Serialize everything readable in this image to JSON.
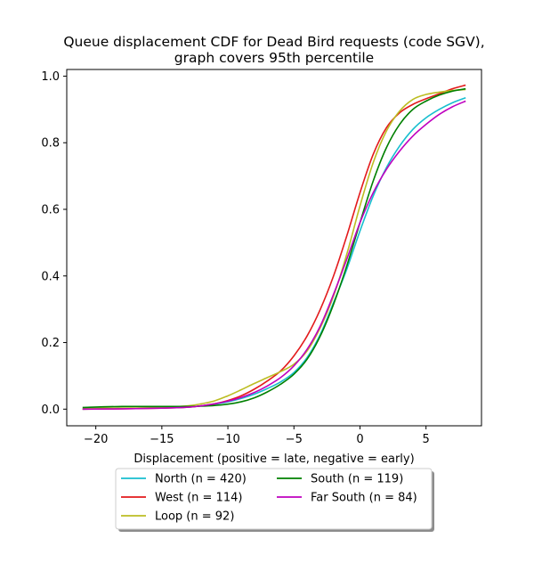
{
  "chart_data": {
    "type": "line",
    "title_lines": [
      "Queue displacement CDF for Dead Bird  requests (code SGV),",
      "graph covers 95th percentile"
    ],
    "xlabel": "Displacement (positive = late, negative = early)",
    "ylabel": "",
    "xlim": [
      -22.2,
      9.2
    ],
    "ylim": [
      -0.05,
      1.02
    ],
    "x_ticks": [
      -20,
      -15,
      -10,
      -5,
      0,
      5
    ],
    "x_tick_labels": [
      "−20",
      "−15",
      "−10",
      "−5",
      "0",
      "5"
    ],
    "y_ticks": [
      0.0,
      0.2,
      0.4,
      0.6,
      0.8,
      1.0
    ],
    "y_tick_labels": [
      "0.0",
      "0.2",
      "0.4",
      "0.6",
      "0.8",
      "1.0"
    ],
    "grid": false,
    "legend_position": "below plot, two columns",
    "series": [
      {
        "name": "North (n = 420)",
        "color": "#17becf",
        "x": [
          -21,
          -18,
          -15,
          -13,
          -12,
          -11,
          -10,
          -9,
          -8,
          -7,
          -6,
          -5,
          -4,
          -3,
          -2,
          -1,
          0,
          1,
          2,
          3,
          4,
          5,
          6,
          7,
          8
        ],
        "y": [
          0.0,
          0.002,
          0.004,
          0.006,
          0.01,
          0.015,
          0.022,
          0.032,
          0.045,
          0.062,
          0.082,
          0.11,
          0.155,
          0.225,
          0.32,
          0.42,
          0.535,
          0.64,
          0.725,
          0.79,
          0.84,
          0.875,
          0.9,
          0.92,
          0.935
        ]
      },
      {
        "name": "West (n = 114)",
        "color": "#e31a1c",
        "x": [
          -21,
          -18,
          -15,
          -13,
          -12,
          -11,
          -10,
          -9,
          -8,
          -7,
          -6,
          -5,
          -4,
          -3,
          -2,
          -1,
          0,
          1,
          2,
          3,
          4,
          5,
          6,
          7,
          8
        ],
        "y": [
          0.0,
          0.001,
          0.003,
          0.006,
          0.01,
          0.016,
          0.026,
          0.04,
          0.06,
          0.085,
          0.115,
          0.16,
          0.22,
          0.3,
          0.4,
          0.52,
          0.65,
          0.765,
          0.845,
          0.89,
          0.915,
          0.932,
          0.947,
          0.962,
          0.973
        ]
      },
      {
        "name": "Loop (n = 92)",
        "color": "#bcbd22",
        "x": [
          -21,
          -18,
          -15,
          -13,
          -12,
          -11,
          -10,
          -9,
          -8,
          -7,
          -6,
          -5,
          -4,
          -3,
          -2,
          -1,
          0,
          1,
          2,
          3,
          4,
          5,
          6,
          7,
          8
        ],
        "y": [
          0.002,
          0.003,
          0.005,
          0.01,
          0.016,
          0.025,
          0.04,
          0.058,
          0.077,
          0.095,
          0.113,
          0.135,
          0.175,
          0.245,
          0.34,
          0.465,
          0.61,
          0.74,
          0.835,
          0.895,
          0.93,
          0.945,
          0.952,
          0.957,
          0.96
        ]
      },
      {
        "name": "South (n = 119)",
        "color": "#008000",
        "x": [
          -21,
          -18,
          -15,
          -13,
          -12,
          -11,
          -10,
          -9,
          -8,
          -7,
          -6,
          -5,
          -4,
          -3,
          -2,
          -1,
          0,
          1,
          2,
          3,
          4,
          5,
          6,
          7,
          8
        ],
        "y": [
          0.005,
          0.008,
          0.008,
          0.008,
          0.009,
          0.011,
          0.015,
          0.022,
          0.034,
          0.052,
          0.075,
          0.105,
          0.15,
          0.22,
          0.315,
          0.43,
          0.56,
          0.685,
          0.785,
          0.855,
          0.9,
          0.925,
          0.943,
          0.955,
          0.962
        ]
      },
      {
        "name": "Far South (n = 84)",
        "color": "#bf00bf",
        "x": [
          -21,
          -18,
          -15,
          -13,
          -12,
          -11,
          -10,
          -9,
          -8,
          -7,
          -6,
          -5,
          -4,
          -3,
          -2,
          -1,
          0,
          1,
          2,
          3,
          4,
          5,
          6,
          7,
          8
        ],
        "y": [
          0.0,
          0.001,
          0.003,
          0.006,
          0.01,
          0.016,
          0.024,
          0.035,
          0.05,
          0.07,
          0.095,
          0.13,
          0.18,
          0.25,
          0.345,
          0.45,
          0.56,
          0.65,
          0.72,
          0.775,
          0.82,
          0.855,
          0.885,
          0.908,
          0.925
        ]
      }
    ]
  }
}
